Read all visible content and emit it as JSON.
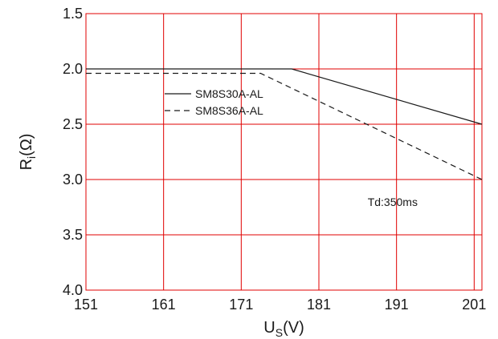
{
  "chart_data": {
    "type": "line",
    "title": "",
    "xlabel": {
      "main": "U",
      "sub": "S",
      "unit": "(V)"
    },
    "ylabel": {
      "main": "R",
      "sub": "i",
      "unit": "(Ω)"
    },
    "xlim": [
      151,
      202
    ],
    "ylim": [
      1.5,
      4.0
    ],
    "y_inverted": true,
    "x_ticks": [
      151,
      161,
      171,
      181,
      191,
      201
    ],
    "x_tick_labels": [
      "151",
      "161",
      "171",
      "181",
      "191",
      "201"
    ],
    "y_ticks": [
      1.5,
      2.0,
      2.5,
      3.0,
      3.5,
      4.0
    ],
    "y_tick_labels": [
      "1.5",
      "2.0",
      "2.5",
      "3.0",
      "3.5",
      "4.0"
    ],
    "grid": true,
    "grid_color": "#e00000",
    "legend_position": "upper-middle",
    "series": [
      {
        "name": "SM8S30A-AL",
        "style": "solid",
        "color": "#1a1a1a",
        "x": [
          151,
          177.5,
          202
        ],
        "y": [
          2.0,
          2.0,
          2.5
        ]
      },
      {
        "name": "SM8S36A-AL",
        "style": "dashed",
        "color": "#1a1a1a",
        "x": [
          151,
          173.5,
          202
        ],
        "y": [
          2.04,
          2.04,
          3.0
        ]
      }
    ],
    "annotations": [
      {
        "text": "Td:350ms",
        "x": 190.5,
        "y": 3.24
      }
    ]
  }
}
